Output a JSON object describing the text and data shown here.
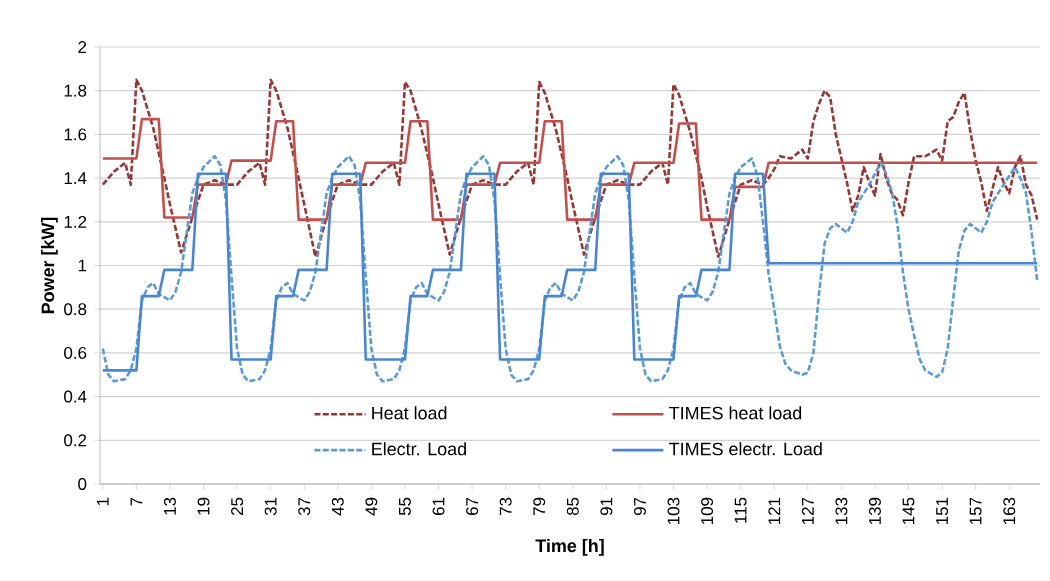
{
  "chart_data": {
    "type": "line",
    "xlabel": "Time [h]",
    "ylabel": "Power [kW]",
    "xlim": [
      0.5,
      168.5
    ],
    "xticks": [
      1,
      7,
      13,
      19,
      25,
      31,
      37,
      43,
      49,
      55,
      61,
      67,
      73,
      79,
      85,
      91,
      97,
      103,
      109,
      115,
      121,
      127,
      133,
      139,
      145,
      151,
      157,
      163
    ],
    "ylim": [
      0,
      2
    ],
    "yticks": [
      0,
      0.2,
      0.4,
      0.6,
      0.8,
      1,
      1.2,
      1.4,
      1.6,
      1.8,
      2
    ],
    "grid": "y",
    "legend": "bottom",
    "series": [
      {
        "name": "Heat load",
        "color": "#953735",
        "line_style": "dashed",
        "x": [
          1,
          3,
          5,
          6,
          7,
          8,
          10,
          12,
          13,
          15,
          17,
          19,
          21,
          23,
          25,
          27,
          29,
          30,
          31,
          32,
          34,
          36,
          37,
          39,
          41,
          43,
          45,
          47,
          49,
          51,
          53,
          54,
          55,
          56,
          58,
          60,
          61,
          63,
          65,
          67,
          69,
          71,
          73,
          75,
          77,
          78,
          79,
          80,
          82,
          84,
          85,
          87,
          89,
          91,
          93,
          95,
          97,
          99,
          101,
          102,
          103,
          104,
          106,
          108,
          109,
          111,
          113,
          115,
          117,
          119,
          120,
          121,
          122,
          124,
          126,
          127,
          128,
          129,
          130,
          131,
          132,
          133,
          134,
          135,
          136,
          137,
          138,
          139,
          140,
          141,
          142,
          143,
          144,
          145,
          146,
          148,
          150,
          151,
          152,
          153,
          154,
          155,
          156,
          157,
          158,
          159,
          160,
          161,
          162,
          163,
          164,
          165,
          166,
          167,
          168
        ],
        "values": [
          1.37,
          1.43,
          1.47,
          1.37,
          1.85,
          1.8,
          1.63,
          1.4,
          1.28,
          1.06,
          1.22,
          1.37,
          1.39,
          1.37,
          1.37,
          1.43,
          1.47,
          1.37,
          1.85,
          1.8,
          1.63,
          1.4,
          1.28,
          1.04,
          1.22,
          1.37,
          1.39,
          1.37,
          1.37,
          1.43,
          1.47,
          1.37,
          1.84,
          1.8,
          1.62,
          1.4,
          1.28,
          1.05,
          1.22,
          1.37,
          1.39,
          1.37,
          1.37,
          1.43,
          1.47,
          1.37,
          1.84,
          1.79,
          1.62,
          1.4,
          1.28,
          1.05,
          1.22,
          1.37,
          1.39,
          1.37,
          1.37,
          1.43,
          1.47,
          1.37,
          1.83,
          1.78,
          1.61,
          1.4,
          1.27,
          1.04,
          1.21,
          1.37,
          1.39,
          1.37,
          1.4,
          1.44,
          1.5,
          1.49,
          1.53,
          1.49,
          1.66,
          1.74,
          1.8,
          1.77,
          1.6,
          1.49,
          1.38,
          1.25,
          1.32,
          1.45,
          1.38,
          1.32,
          1.51,
          1.4,
          1.33,
          1.3,
          1.23,
          1.38,
          1.5,
          1.5,
          1.53,
          1.48,
          1.66,
          1.68,
          1.75,
          1.79,
          1.62,
          1.48,
          1.38,
          1.25,
          1.35,
          1.45,
          1.38,
          1.33,
          1.45,
          1.5,
          1.37,
          1.32,
          1.21
        ]
      },
      {
        "name": "TIMES heat load",
        "color": "#c0504d",
        "line_style": "solid",
        "x": [
          1,
          7,
          8,
          11,
          12,
          17,
          18,
          23,
          24,
          31,
          32,
          35,
          36,
          41,
          42,
          47,
          48,
          55,
          56,
          59,
          60,
          65,
          66,
          71,
          72,
          79,
          80,
          83,
          84,
          89,
          90,
          95,
          96,
          103,
          104,
          107,
          108,
          113,
          114,
          119,
          120,
          168
        ],
        "values": [
          1.49,
          1.49,
          1.67,
          1.67,
          1.22,
          1.22,
          1.37,
          1.37,
          1.48,
          1.48,
          1.66,
          1.66,
          1.21,
          1.21,
          1.37,
          1.37,
          1.47,
          1.47,
          1.66,
          1.66,
          1.21,
          1.21,
          1.37,
          1.37,
          1.47,
          1.47,
          1.66,
          1.66,
          1.21,
          1.21,
          1.37,
          1.37,
          1.47,
          1.47,
          1.65,
          1.65,
          1.21,
          1.21,
          1.36,
          1.36,
          1.47,
          1.47
        ]
      },
      {
        "name": "Electr. Load",
        "color": "#5b9bd5",
        "line_style": "dashed",
        "x": [
          1,
          2,
          3,
          5,
          6,
          7,
          8,
          9,
          10,
          11,
          13,
          14,
          15,
          16,
          17,
          18,
          19,
          21,
          22,
          23,
          24,
          25,
          26,
          27,
          29,
          30,
          31,
          32,
          33,
          34,
          35,
          37,
          38,
          39,
          40,
          41,
          42,
          43,
          45,
          46,
          47,
          48,
          49,
          50,
          51,
          53,
          54,
          55,
          56,
          57,
          58,
          59,
          61,
          62,
          63,
          64,
          65,
          66,
          67,
          69,
          70,
          71,
          72,
          73,
          74,
          75,
          77,
          78,
          79,
          80,
          81,
          82,
          83,
          85,
          86,
          87,
          88,
          89,
          90,
          91,
          93,
          94,
          95,
          96,
          97,
          98,
          99,
          101,
          102,
          103,
          104,
          105,
          106,
          107,
          109,
          110,
          111,
          112,
          113,
          114,
          115,
          117,
          118,
          119,
          120,
          121,
          122,
          123,
          124,
          126,
          127,
          128,
          129,
          130,
          131,
          132,
          134,
          135,
          136,
          138,
          140,
          141,
          142,
          143,
          144,
          145,
          146,
          147,
          148,
          150,
          151,
          152,
          153,
          154,
          155,
          156,
          158,
          159,
          160,
          162,
          164,
          165,
          166,
          167,
          168
        ],
        "values": [
          0.62,
          0.5,
          0.47,
          0.48,
          0.52,
          0.62,
          0.84,
          0.9,
          0.92,
          0.87,
          0.84,
          0.88,
          0.97,
          1.15,
          1.33,
          1.4,
          1.45,
          1.5,
          1.46,
          1.3,
          0.95,
          0.62,
          0.5,
          0.47,
          0.48,
          0.52,
          0.62,
          0.84,
          0.9,
          0.92,
          0.87,
          0.84,
          0.88,
          0.97,
          1.15,
          1.33,
          1.4,
          1.45,
          1.5,
          1.46,
          1.3,
          0.95,
          0.62,
          0.5,
          0.47,
          0.48,
          0.52,
          0.62,
          0.84,
          0.9,
          0.92,
          0.87,
          0.84,
          0.88,
          0.97,
          1.15,
          1.33,
          1.4,
          1.45,
          1.5,
          1.46,
          1.3,
          0.95,
          0.62,
          0.5,
          0.47,
          0.48,
          0.52,
          0.62,
          0.84,
          0.9,
          0.92,
          0.87,
          0.84,
          0.88,
          0.97,
          1.15,
          1.33,
          1.4,
          1.45,
          1.5,
          1.46,
          1.3,
          0.95,
          0.62,
          0.5,
          0.47,
          0.48,
          0.52,
          0.62,
          0.84,
          0.9,
          0.92,
          0.87,
          0.84,
          0.88,
          0.97,
          1.15,
          1.33,
          1.4,
          1.45,
          1.49,
          1.41,
          1.2,
          0.96,
          0.8,
          0.63,
          0.55,
          0.52,
          0.5,
          0.51,
          0.6,
          0.87,
          1.1,
          1.17,
          1.19,
          1.15,
          1.2,
          1.29,
          1.37,
          1.47,
          1.42,
          1.34,
          1.19,
          0.97,
          0.8,
          0.68,
          0.57,
          0.52,
          0.49,
          0.51,
          0.62,
          0.85,
          1.07,
          1.16,
          1.19,
          1.15,
          1.2,
          1.29,
          1.37,
          1.45,
          1.4,
          1.33,
          1.15,
          0.93
        ]
      },
      {
        "name": "TIMES electr. Load",
        "color": "#4a86d0",
        "line_style": "solid",
        "x": [
          1,
          7,
          8,
          11,
          12,
          17,
          18,
          23,
          24,
          31,
          32,
          35,
          36,
          41,
          42,
          47,
          48,
          55,
          56,
          59,
          60,
          65,
          66,
          71,
          72,
          79,
          80,
          83,
          84,
          89,
          90,
          95,
          96,
          103,
          104,
          107,
          108,
          113,
          114,
          119,
          120,
          168
        ],
        "values": [
          0.52,
          0.52,
          0.86,
          0.86,
          0.98,
          0.98,
          1.42,
          1.42,
          0.57,
          0.57,
          0.86,
          0.86,
          0.98,
          0.98,
          1.42,
          1.42,
          0.57,
          0.57,
          0.86,
          0.86,
          0.98,
          0.98,
          1.42,
          1.42,
          0.57,
          0.57,
          0.86,
          0.86,
          0.98,
          0.98,
          1.42,
          1.42,
          0.57,
          0.57,
          0.86,
          0.86,
          0.98,
          0.98,
          1.42,
          1.42,
          1.01,
          1.01
        ]
      }
    ]
  }
}
